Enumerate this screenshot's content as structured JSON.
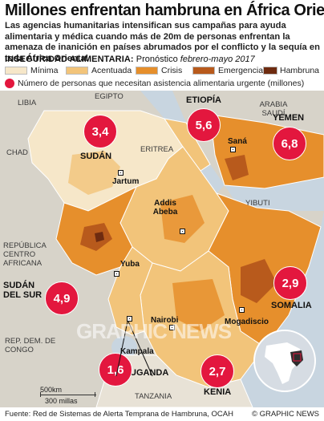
{
  "header": {
    "title": "Millones enfrentan hambruna en África Oriental",
    "intro": "Las agencias humanitarias intensifican sus campañas para ayuda alimentaria y médica cuando más de 20m de personas enfrentan la amenaza de inanición en  países abrumados por el conflicto y la sequía en toda África Oriental"
  },
  "legend": {
    "label_bold": "INSEGURIDAD ALIMENTARIA:",
    "label_plain": " Pronóstico ",
    "label_italic": "febrero-mayo 2017",
    "categories": [
      {
        "label": "Mínima",
        "color": "#f6e7c9"
      },
      {
        "label": "Acentuada",
        "color": "#f2c47a"
      },
      {
        "label": "Crisis",
        "color": "#e68f2c"
      },
      {
        "label": "Emergencia",
        "color": "#b85a1c"
      },
      {
        "label": "Hambruna",
        "color": "#6e2b10"
      }
    ],
    "circle_label": "Número de personas que necesitan asistencia alimentaria urgente (millones)",
    "circle_color": "#e3173e"
  },
  "map": {
    "countries": {
      "libia": "LIBIA",
      "egipto": "EGIPTO",
      "etiopia": "ETIOPÍA",
      "arabia": "ARABIA SAUDÍ",
      "yemen": "YEMEN",
      "chad": "CHAD",
      "sudan": "SUDÁN",
      "eritrea": "ERITREA",
      "yibuti": "YIBUTI",
      "rca": "REPÚBLICA CENTRO AFRICANA",
      "sudan_sur": "SUDÁN DEL SUR",
      "somalia": "SOMALIA",
      "rdc": "REP. DEM. DE CONGO",
      "uganda": "UGANDA",
      "kenia": "KENIA",
      "tanzania": "TANZANIA"
    },
    "cities": {
      "sana": "Saná",
      "jartum": "Jartum",
      "addis": "Addis Abeba",
      "yuba": "Yuba",
      "nairobi": "Nairobi",
      "mogadiscio": "Mogadiscio",
      "kampala": "Kampala"
    },
    "bubbles": [
      {
        "id": "sudan",
        "value": "3,4"
      },
      {
        "id": "etiopia",
        "value": "5,6"
      },
      {
        "id": "yemen",
        "value": "6,8"
      },
      {
        "id": "sudan_sur",
        "value": "4,9"
      },
      {
        "id": "somalia",
        "value": "2,9"
      },
      {
        "id": "uganda",
        "value": "1,6"
      },
      {
        "id": "kenia",
        "value": "2,7"
      }
    ],
    "scale": {
      "km": "500km",
      "miles": "300 millas"
    },
    "colors": {
      "land_outside": "#d7d3c9",
      "water": "#c8d5e0",
      "minima": "#f6e7c9",
      "acentuada": "#f2c47a",
      "crisis": "#e68f2c",
      "emergencia": "#b85a1c",
      "hambruna": "#6e2b10"
    }
  },
  "footer": {
    "source": "Fuente: Red de Sistemas de Alerta Temprana de Hambruna, OCAH",
    "credit": "© GRAPHIC NEWS"
  },
  "watermark": "GRAPHIC NEWS"
}
